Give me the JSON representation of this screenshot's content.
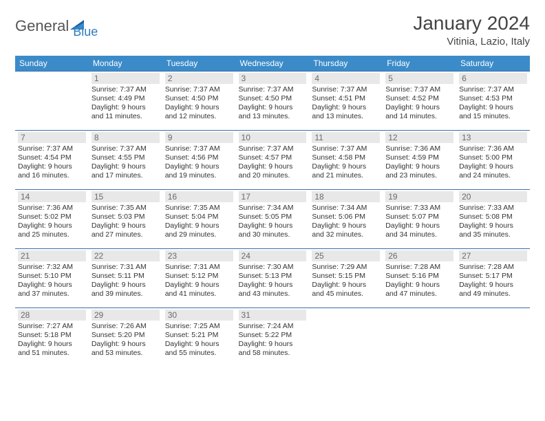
{
  "logo": {
    "text1": "General",
    "text2": "Blue"
  },
  "title": "January 2024",
  "location": "Vitinia, Lazio, Italy",
  "colors": {
    "header_bg": "#3b8bc9",
    "header_text": "#ffffff",
    "border": "#3b6fa8",
    "daynum_bg": "#e8e8e8",
    "daynum_text": "#6a6a6a",
    "body_text": "#333333",
    "logo_gray": "#555555",
    "logo_blue": "#2f7bbf"
  },
  "weekdays": [
    "Sunday",
    "Monday",
    "Tuesday",
    "Wednesday",
    "Thursday",
    "Friday",
    "Saturday"
  ],
  "weeks": [
    [
      {
        "day": "",
        "sunrise": "",
        "sunset": "",
        "daylight": ""
      },
      {
        "day": "1",
        "sunrise": "7:37 AM",
        "sunset": "4:49 PM",
        "daylight": "9 hours and 11 minutes."
      },
      {
        "day": "2",
        "sunrise": "7:37 AM",
        "sunset": "4:50 PM",
        "daylight": "9 hours and 12 minutes."
      },
      {
        "day": "3",
        "sunrise": "7:37 AM",
        "sunset": "4:50 PM",
        "daylight": "9 hours and 13 minutes."
      },
      {
        "day": "4",
        "sunrise": "7:37 AM",
        "sunset": "4:51 PM",
        "daylight": "9 hours and 13 minutes."
      },
      {
        "day": "5",
        "sunrise": "7:37 AM",
        "sunset": "4:52 PM",
        "daylight": "9 hours and 14 minutes."
      },
      {
        "day": "6",
        "sunrise": "7:37 AM",
        "sunset": "4:53 PM",
        "daylight": "9 hours and 15 minutes."
      }
    ],
    [
      {
        "day": "7",
        "sunrise": "7:37 AM",
        "sunset": "4:54 PM",
        "daylight": "9 hours and 16 minutes."
      },
      {
        "day": "8",
        "sunrise": "7:37 AM",
        "sunset": "4:55 PM",
        "daylight": "9 hours and 17 minutes."
      },
      {
        "day": "9",
        "sunrise": "7:37 AM",
        "sunset": "4:56 PM",
        "daylight": "9 hours and 19 minutes."
      },
      {
        "day": "10",
        "sunrise": "7:37 AM",
        "sunset": "4:57 PM",
        "daylight": "9 hours and 20 minutes."
      },
      {
        "day": "11",
        "sunrise": "7:37 AM",
        "sunset": "4:58 PM",
        "daylight": "9 hours and 21 minutes."
      },
      {
        "day": "12",
        "sunrise": "7:36 AM",
        "sunset": "4:59 PM",
        "daylight": "9 hours and 23 minutes."
      },
      {
        "day": "13",
        "sunrise": "7:36 AM",
        "sunset": "5:00 PM",
        "daylight": "9 hours and 24 minutes."
      }
    ],
    [
      {
        "day": "14",
        "sunrise": "7:36 AM",
        "sunset": "5:02 PM",
        "daylight": "9 hours and 25 minutes."
      },
      {
        "day": "15",
        "sunrise": "7:35 AM",
        "sunset": "5:03 PM",
        "daylight": "9 hours and 27 minutes."
      },
      {
        "day": "16",
        "sunrise": "7:35 AM",
        "sunset": "5:04 PM",
        "daylight": "9 hours and 29 minutes."
      },
      {
        "day": "17",
        "sunrise": "7:34 AM",
        "sunset": "5:05 PM",
        "daylight": "9 hours and 30 minutes."
      },
      {
        "day": "18",
        "sunrise": "7:34 AM",
        "sunset": "5:06 PM",
        "daylight": "9 hours and 32 minutes."
      },
      {
        "day": "19",
        "sunrise": "7:33 AM",
        "sunset": "5:07 PM",
        "daylight": "9 hours and 34 minutes."
      },
      {
        "day": "20",
        "sunrise": "7:33 AM",
        "sunset": "5:08 PM",
        "daylight": "9 hours and 35 minutes."
      }
    ],
    [
      {
        "day": "21",
        "sunrise": "7:32 AM",
        "sunset": "5:10 PM",
        "daylight": "9 hours and 37 minutes."
      },
      {
        "day": "22",
        "sunrise": "7:31 AM",
        "sunset": "5:11 PM",
        "daylight": "9 hours and 39 minutes."
      },
      {
        "day": "23",
        "sunrise": "7:31 AM",
        "sunset": "5:12 PM",
        "daylight": "9 hours and 41 minutes."
      },
      {
        "day": "24",
        "sunrise": "7:30 AM",
        "sunset": "5:13 PM",
        "daylight": "9 hours and 43 minutes."
      },
      {
        "day": "25",
        "sunrise": "7:29 AM",
        "sunset": "5:15 PM",
        "daylight": "9 hours and 45 minutes."
      },
      {
        "day": "26",
        "sunrise": "7:28 AM",
        "sunset": "5:16 PM",
        "daylight": "9 hours and 47 minutes."
      },
      {
        "day": "27",
        "sunrise": "7:28 AM",
        "sunset": "5:17 PM",
        "daylight": "9 hours and 49 minutes."
      }
    ],
    [
      {
        "day": "28",
        "sunrise": "7:27 AM",
        "sunset": "5:18 PM",
        "daylight": "9 hours and 51 minutes."
      },
      {
        "day": "29",
        "sunrise": "7:26 AM",
        "sunset": "5:20 PM",
        "daylight": "9 hours and 53 minutes."
      },
      {
        "day": "30",
        "sunrise": "7:25 AM",
        "sunset": "5:21 PM",
        "daylight": "9 hours and 55 minutes."
      },
      {
        "day": "31",
        "sunrise": "7:24 AM",
        "sunset": "5:22 PM",
        "daylight": "9 hours and 58 minutes."
      },
      {
        "day": "",
        "sunrise": "",
        "sunset": "",
        "daylight": ""
      },
      {
        "day": "",
        "sunrise": "",
        "sunset": "",
        "daylight": ""
      },
      {
        "day": "",
        "sunrise": "",
        "sunset": "",
        "daylight": ""
      }
    ]
  ],
  "labels": {
    "sunrise": "Sunrise:",
    "sunset": "Sunset:",
    "daylight": "Daylight:"
  }
}
